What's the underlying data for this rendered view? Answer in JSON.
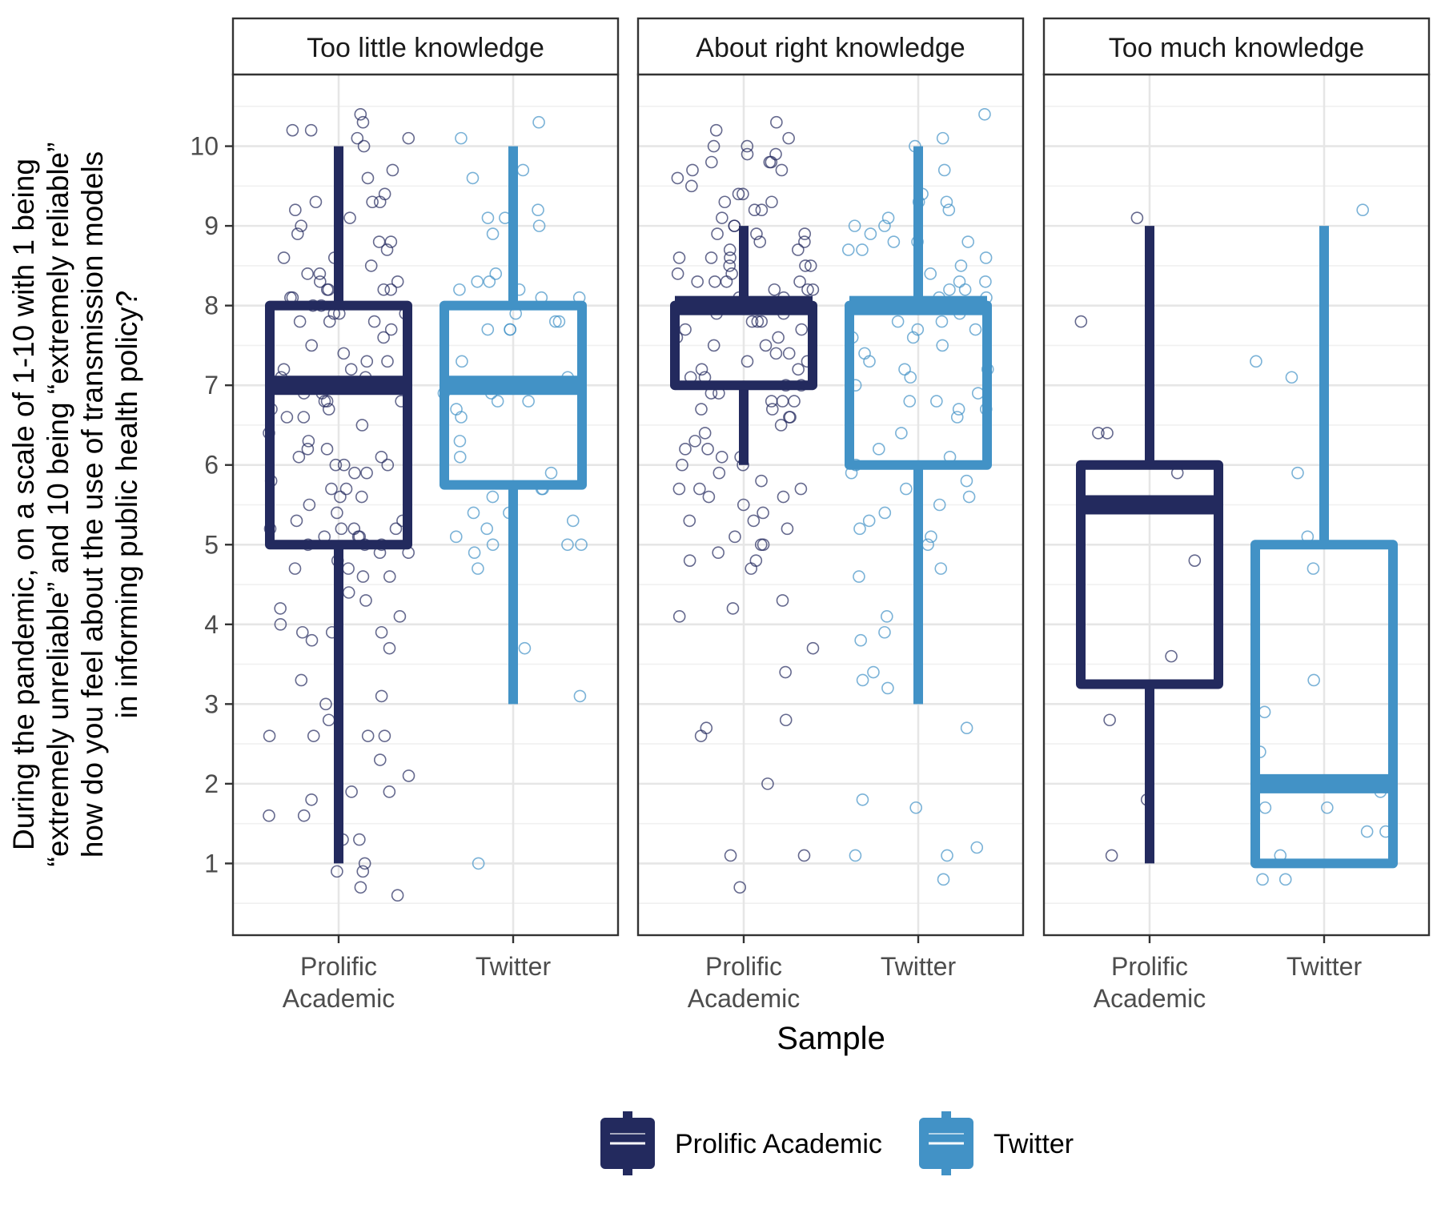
{
  "chart_data": {
    "type": "box",
    "title": "",
    "xlabel": "Sample",
    "ylabel_lines": [
      "During the pandemic, on a scale of 1-10 with 1 being",
      "“extremely unreliable” and 10 being “extremely reliable”",
      "how do you feel about the use of transmission models",
      "in informing public health policy?"
    ],
    "ylim": [
      0.1,
      10.9
    ],
    "y_ticks": [
      1,
      2,
      3,
      4,
      5,
      6,
      7,
      8,
      9,
      10
    ],
    "grid": true,
    "legend_position": "bottom",
    "categories": [
      "Prolific Academic",
      "Twitter"
    ],
    "category_tick_labels": [
      [
        "Prolific",
        "Academic"
      ],
      [
        "Twitter"
      ]
    ],
    "series_colors": {
      "Prolific Academic": "#232a5e",
      "Twitter": "#4292c6"
    },
    "legend": [
      {
        "name": "Prolific Academic",
        "color": "#232a5e"
      },
      {
        "name": "Twitter",
        "color": "#4292c6"
      }
    ],
    "facets": [
      {
        "title": "Too little knowledge",
        "boxes": [
          {
            "group": "Prolific Academic",
            "min": 1,
            "q1": 5,
            "median": 7,
            "q3": 8,
            "max": 10
          },
          {
            "group": "Twitter",
            "min": 3,
            "q1": 5.75,
            "median": 7,
            "q3": 8,
            "max": 10
          }
        ],
        "points": {
          "Prolific Academic": [
            10.4,
            10.2,
            10.1,
            10.1,
            10.0,
            10.3,
            10.2,
            9.7,
            9.6,
            9.4,
            9.3,
            9.3,
            9.3,
            9.2,
            9.1,
            9.0,
            8.9,
            8.8,
            8.8,
            8.7,
            8.6,
            8.6,
            8.5,
            8.4,
            8.4,
            8.3,
            8.3,
            8.2,
            8.2,
            8.2,
            8.2,
            8.1,
            8.1,
            8.0,
            8.0,
            7.9,
            7.9,
            7.9,
            7.8,
            7.8,
            7.8,
            7.7,
            7.6,
            7.5,
            7.4,
            7.3,
            7.3,
            7.2,
            7.2,
            7.1,
            7.1,
            7.0,
            7.0,
            6.9,
            6.9,
            6.8,
            6.8,
            6.8,
            6.7,
            6.7,
            6.6,
            6.6,
            6.5,
            6.4,
            6.3,
            6.2,
            6.2,
            6.1,
            6.1,
            6.0,
            6.0,
            6.0,
            5.9,
            5.9,
            5.8,
            5.7,
            5.7,
            5.6,
            5.6,
            5.5,
            5.4,
            5.3,
            5.3,
            5.2,
            5.2,
            5.2,
            5.2,
            5.1,
            5.1,
            5.1,
            5.0,
            5.0,
            5.0,
            4.9,
            4.9,
            4.8,
            4.7,
            4.7,
            4.6,
            4.6,
            4.4,
            4.3,
            4.2,
            4.1,
            4.0,
            3.9,
            3.9,
            3.9,
            3.8,
            3.7,
            3.3,
            3.1,
            3.0,
            2.8,
            2.6,
            2.6,
            2.6,
            2.6,
            2.3,
            2.1,
            1.9,
            1.9,
            1.8,
            1.6,
            1.6,
            1.3,
            1.3,
            1.0,
            0.9,
            0.9,
            0.7,
            0.6
          ],
          "Twitter": [
            10.3,
            10.1,
            9.7,
            9.6,
            9.2,
            9.1,
            9.1,
            9.0,
            8.9,
            8.4,
            8.3,
            8.3,
            8.2,
            8.2,
            8.1,
            8.1,
            7.9,
            7.8,
            7.8,
            7.7,
            7.7,
            7.7,
            7.3,
            7.1,
            6.9,
            6.9,
            6.8,
            6.8,
            6.7,
            6.6,
            6.3,
            6.1,
            5.9,
            5.7,
            5.7,
            5.6,
            5.4,
            5.4,
            5.3,
            5.2,
            5.1,
            5.0,
            5.0,
            5.0,
            4.9,
            4.7,
            3.7,
            3.1,
            1.0
          ]
        }
      },
      {
        "title": "About right knowledge",
        "boxes": [
          {
            "group": "Prolific Academic",
            "min": 6,
            "q1": 7,
            "median": 8,
            "q3": 8,
            "max": 9
          },
          {
            "group": "Twitter",
            "min": 3,
            "q1": 6,
            "median": 8,
            "q3": 8,
            "max": 10
          }
        ],
        "points": {
          "Prolific Academic": [
            10.3,
            10.2,
            10.1,
            10.0,
            10.0,
            9.9,
            9.9,
            9.8,
            9.8,
            9.8,
            9.7,
            9.7,
            9.6,
            9.5,
            9.4,
            9.4,
            9.3,
            9.3,
            9.2,
            9.2,
            9.1,
            9.0,
            9.0,
            8.9,
            8.9,
            8.9,
            8.8,
            8.8,
            8.7,
            8.7,
            8.6,
            8.6,
            8.6,
            8.5,
            8.5,
            8.5,
            8.4,
            8.4,
            8.3,
            8.3,
            8.3,
            8.3,
            8.2,
            8.2,
            8.2,
            8.1,
            8.1,
            8.0,
            8.0,
            7.9,
            7.9,
            7.8,
            7.8,
            7.8,
            7.7,
            7.7,
            7.6,
            7.6,
            7.5,
            7.5,
            7.4,
            7.4,
            7.3,
            7.3,
            7.2,
            7.2,
            7.1,
            7.1,
            7.0,
            7.0,
            6.9,
            6.9,
            6.8,
            6.8,
            6.8,
            6.7,
            6.7,
            6.6,
            6.6,
            6.5,
            6.4,
            6.3,
            6.2,
            6.2,
            6.1,
            6.1,
            6.0,
            6.0,
            5.9,
            5.8,
            5.7,
            5.7,
            5.7,
            5.6,
            5.6,
            5.5,
            5.4,
            5.3,
            5.3,
            5.2,
            5.1,
            5.0,
            5.0,
            4.9,
            4.8,
            4.8,
            4.7,
            4.3,
            4.2,
            4.1,
            3.7,
            3.4,
            2.8,
            2.7,
            2.6,
            2.0,
            1.1,
            1.1,
            0.7
          ],
          "Twitter": [
            10.4,
            10.1,
            10.0,
            9.7,
            9.4,
            9.3,
            9.3,
            9.2,
            9.1,
            9.0,
            9.0,
            8.9,
            8.8,
            8.8,
            8.8,
            8.7,
            8.7,
            8.6,
            8.5,
            8.4,
            8.3,
            8.3,
            8.2,
            8.2,
            8.1,
            8.1,
            8.0,
            8.0,
            7.9,
            7.8,
            7.8,
            7.7,
            7.7,
            7.6,
            7.6,
            7.5,
            7.4,
            7.3,
            7.2,
            7.2,
            7.1,
            7.0,
            6.9,
            6.8,
            6.8,
            6.7,
            6.7,
            6.6,
            6.4,
            6.2,
            6.1,
            6.0,
            5.9,
            5.8,
            5.7,
            5.6,
            5.5,
            5.4,
            5.3,
            5.2,
            5.1,
            5.0,
            4.7,
            4.6,
            4.1,
            3.9,
            3.8,
            3.4,
            3.3,
            3.2,
            2.7,
            1.8,
            1.7,
            1.2,
            1.1,
            1.1,
            0.8
          ]
        }
      },
      {
        "title": "Too much knowledge",
        "boxes": [
          {
            "group": "Prolific Academic",
            "min": 1,
            "q1": 3.25,
            "median": 5.5,
            "q3": 6,
            "max": 9
          },
          {
            "group": "Twitter",
            "min": 1,
            "q1": 1,
            "median": 2,
            "q3": 5,
            "max": 9
          }
        ],
        "points": {
          "Prolific Academic": [
            9.1,
            7.8,
            6.4,
            6.4,
            5.9,
            4.8,
            3.6,
            2.8,
            1.8,
            1.1
          ],
          "Twitter": [
            9.2,
            7.3,
            7.1,
            5.9,
            5.1,
            4.7,
            3.3,
            2.9,
            2.4,
            1.9,
            1.7,
            1.7,
            1.4,
            1.4,
            1.1,
            0.8,
            0.8
          ]
        }
      }
    ]
  }
}
